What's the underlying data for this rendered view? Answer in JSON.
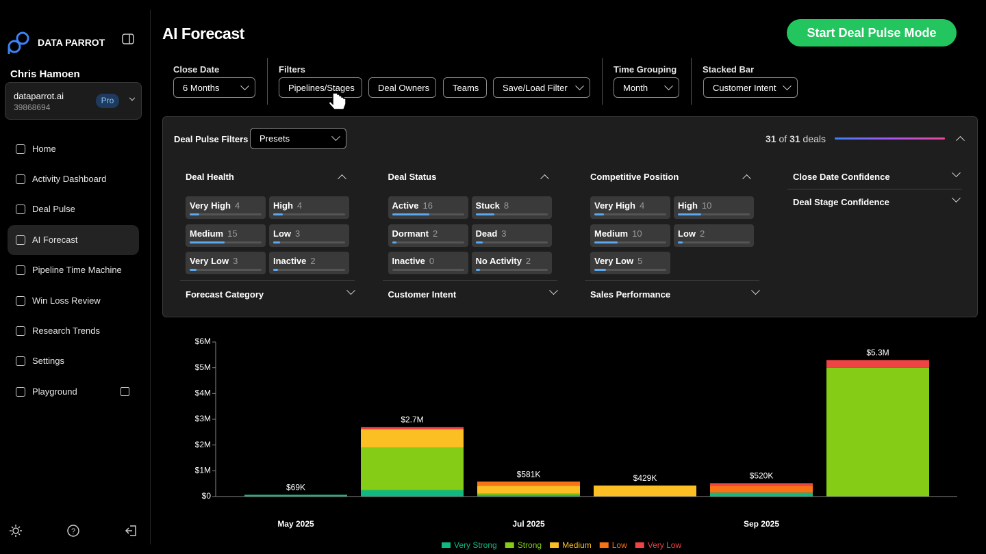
{
  "sidebar": {
    "brand": "DATA PARROT",
    "user": "Chris Hamoen",
    "org": {
      "name": "dataparrot.ai",
      "id": "39868694",
      "plan": "Pro"
    },
    "nav": [
      "Home",
      "Activity Dashboard",
      "Deal Pulse",
      "AI Forecast",
      "Pipeline Time Machine",
      "Win Loss Review",
      "Research Trends",
      "Settings",
      "Playground"
    ],
    "active_nav": 3
  },
  "header": {
    "title": "AI Forecast",
    "action": "Start Deal Pulse Mode"
  },
  "filter_bar": {
    "close_date": {
      "label": "Close Date",
      "value": "6 Months"
    },
    "filters": {
      "label": "Filters",
      "options": [
        "Pipelines/Stages",
        "Deal Owners",
        "Teams",
        "Save/Load Filter"
      ]
    },
    "time_grouping": {
      "label": "Time Grouping",
      "value": "Month"
    },
    "stacked_bar": {
      "label": "Stacked Bar",
      "value": "Customer Intent"
    }
  },
  "deal_pulse": {
    "title": "Deal Pulse Filters",
    "preset": "Presets",
    "shown": 31,
    "of": "of",
    "total": 31,
    "unit": "deals",
    "groups": [
      {
        "title": "Deal Health",
        "items": [
          {
            "label": "Very High",
            "count": 4
          },
          {
            "label": "High",
            "count": 4
          },
          {
            "label": "Medium",
            "count": 15
          },
          {
            "label": "Low",
            "count": 3
          },
          {
            "label": "Very Low",
            "count": 3
          },
          {
            "label": "Inactive",
            "count": 2
          }
        ],
        "footer": "Forecast Category"
      },
      {
        "title": "Deal Status",
        "items": [
          {
            "label": "Active",
            "count": 16
          },
          {
            "label": "Stuck",
            "count": 8
          },
          {
            "label": "Dormant",
            "count": 2
          },
          {
            "label": "Dead",
            "count": 3
          },
          {
            "label": "Inactive",
            "count": 0
          },
          {
            "label": "No Activity",
            "count": 2
          }
        ],
        "footer": "Customer Intent"
      },
      {
        "title": "Competitive Position",
        "items": [
          {
            "label": "Very High",
            "count": 4
          },
          {
            "label": "High",
            "count": 10
          },
          {
            "label": "Medium",
            "count": 10
          },
          {
            "label": "Low",
            "count": 2
          },
          {
            "label": "Very Low",
            "count": 5
          }
        ],
        "footer": "Sales Performance"
      }
    ],
    "collapsed": [
      "Close Date Confidence",
      "Deal Stage Confidence"
    ]
  },
  "chart_data": {
    "type": "bar",
    "stacked": true,
    "categories": [
      "May 2025",
      null,
      "Jul 2025",
      null,
      "Sep 2025",
      null
    ],
    "series": [
      {
        "name": "Very Strong",
        "color": "#10b981",
        "values": [
          69000,
          250000,
          60000,
          0,
          150000,
          0
        ]
      },
      {
        "name": "Strong",
        "color": "#84cc16",
        "values": [
          0,
          1650000,
          61000,
          0,
          0,
          5000000
        ]
      },
      {
        "name": "Medium",
        "color": "#fbbf24",
        "values": [
          0,
          720000,
          300000,
          429000,
          0,
          0
        ]
      },
      {
        "name": "Low",
        "color": "#f97316",
        "values": [
          0,
          0,
          160000,
          0,
          270000,
          0
        ]
      },
      {
        "name": "Very Low",
        "color": "#ef4444",
        "values": [
          0,
          80000,
          0,
          0,
          100000,
          300000
        ]
      }
    ],
    "totals": [
      69000,
      2700000,
      581000,
      429000,
      520000,
      5300000
    ],
    "total_labels": [
      "$69K",
      "$2.7M",
      "$581K",
      "$429K",
      "$520K",
      "$5.3M"
    ],
    "ylim": [
      0,
      6000000
    ],
    "yticks": [
      {
        "value": 0,
        "label": "$0"
      },
      {
        "value": 1000000,
        "label": "$1M"
      },
      {
        "value": 2000000,
        "label": "$2M"
      },
      {
        "value": 3000000,
        "label": "$3M"
      },
      {
        "value": 4000000,
        "label": "$4M"
      },
      {
        "value": 5000000,
        "label": "$5M"
      },
      {
        "value": 6000000,
        "label": "$6M"
      }
    ],
    "legend": "bottom"
  }
}
